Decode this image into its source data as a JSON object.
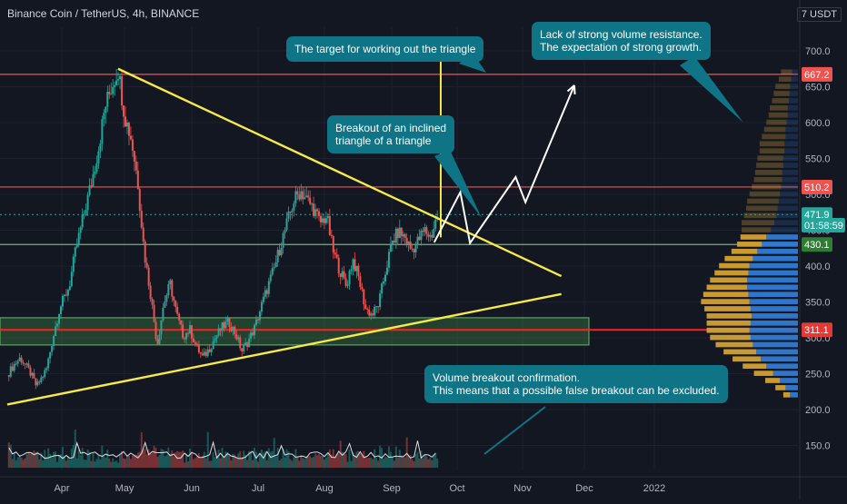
{
  "header": {
    "symbol": "Binance Coin / TetherUS, 4h, BINANCE",
    "currency": "7 USDT"
  },
  "annotations": {
    "target": "The target for working out the triangle",
    "volume_resistance": "Lack of strong volume resistance.\nThe expectation of strong growth.",
    "breakout": "Breakout of an inclined\ntriangle of a triangle",
    "volume_confirm": "Volume breakout confirmation.\nThis means that a possible false breakout can be excluded."
  },
  "colors": {
    "background": "#131722",
    "bull": "#26a69a",
    "bear": "#ef5350",
    "trendline": "#f5e94c",
    "resistance": "#ef5350",
    "support": "#4caf50",
    "annotation_bg": "#0e7486",
    "profile_up": "#2f7bd6",
    "profile_down": "#d4a032"
  },
  "chart_data": {
    "type": "candlestick",
    "title": "Binance Coin / TetherUS, 4h, BINANCE",
    "y_axis": {
      "ticks": [
        "700.0",
        "650.0",
        "600.0",
        "550.0",
        "500.0",
        "450.0",
        "400.0",
        "350.0",
        "300.0",
        "250.0",
        "200.0",
        "150.0"
      ],
      "tick_values": [
        700,
        650,
        600,
        550,
        500,
        450,
        400,
        350,
        300,
        250,
        200,
        150
      ],
      "range": [
        123,
        722
      ]
    },
    "x_axis": {
      "ticks": [
        "Apr",
        "May",
        "Jun",
        "Jul",
        "Aug",
        "Sep",
        "Oct",
        "Nov",
        "Dec",
        "2022"
      ]
    },
    "price_closes": [
      [
        0,
        248
      ],
      [
        2,
        262
      ],
      [
        4,
        272
      ],
      [
        7,
        252
      ],
      [
        9,
        232
      ],
      [
        12,
        256
      ],
      [
        14,
        300
      ],
      [
        16,
        340
      ],
      [
        19,
        372
      ],
      [
        21,
        422
      ],
      [
        23,
        462
      ],
      [
        26,
        520
      ],
      [
        28,
        565
      ],
      [
        30,
        622
      ],
      [
        32,
        650
      ],
      [
        34,
        675
      ],
      [
        36,
        610
      ],
      [
        38,
        578
      ],
      [
        40,
        520
      ],
      [
        42,
        420
      ],
      [
        44,
        360
      ],
      [
        46,
        290
      ],
      [
        48,
        348
      ],
      [
        50,
        375
      ],
      [
        52,
        332
      ],
      [
        54,
        302
      ],
      [
        56,
        312
      ],
      [
        58,
        288
      ],
      [
        60,
        272
      ],
      [
        62,
        285
      ],
      [
        64,
        302
      ],
      [
        66,
        315
      ],
      [
        68,
        322
      ],
      [
        70,
        306
      ],
      [
        72,
        282
      ],
      [
        74,
        296
      ],
      [
        76,
        315
      ],
      [
        78,
        345
      ],
      [
        80,
        372
      ],
      [
        82,
        398
      ],
      [
        84,
        432
      ],
      [
        86,
        462
      ],
      [
        88,
        492
      ],
      [
        90,
        505
      ],
      [
        92,
        492
      ],
      [
        94,
        480
      ],
      [
        96,
        460
      ],
      [
        98,
        470
      ],
      [
        100,
        420
      ],
      [
        102,
        395
      ],
      [
        104,
        372
      ],
      [
        106,
        410
      ],
      [
        108,
        380
      ],
      [
        110,
        340
      ],
      [
        112,
        332
      ],
      [
        114,
        348
      ],
      [
        116,
        392
      ],
      [
        118,
        432
      ],
      [
        120,
        448
      ],
      [
        122,
        440
      ],
      [
        124,
        422
      ],
      [
        126,
        435
      ],
      [
        128,
        450
      ],
      [
        130,
        440
      ],
      [
        132,
        472
      ]
    ],
    "levels": {
      "resistance": [
        667.2,
        510.2
      ],
      "support": [
        430.1
      ],
      "key": [
        311.1
      ],
      "support_zone": [
        290,
        328
      ]
    },
    "trendlines": [
      {
        "name": "descending",
        "from": [
          34,
          675
        ],
        "to": [
          170,
          386
        ]
      },
      {
        "name": "ascending",
        "from": [
          0,
          207
        ],
        "to": [
          170,
          361
        ]
      }
    ],
    "projection": [
      [
        131,
        433
      ],
      [
        139,
        503
      ],
      [
        142,
        432
      ],
      [
        156,
        524
      ],
      [
        159,
        489
      ],
      [
        174,
        652
      ]
    ],
    "target_line": {
      "x": 133,
      "from": 440,
      "to": 700
    },
    "price_labels": [
      {
        "text": "667.2",
        "value": 667.2,
        "color": "#ef5350"
      },
      {
        "text": "510.2",
        "value": 510.2,
        "color": "#ef5350"
      },
      {
        "text": "471.9",
        "value": 471.9,
        "color": "#26a69a"
      },
      {
        "text": "01:58:59",
        "value": 457,
        "color": "#26a69a"
      },
      {
        "text": "430.1",
        "value": 430.1,
        "color": "#2e7d32"
      },
      {
        "text": "311.1",
        "value": 311.1,
        "color": "#e53935"
      }
    ],
    "volume_profile": [
      {
        "price": 670,
        "up": 10,
        "down": 20
      },
      {
        "price": 660,
        "up": 12,
        "down": 22
      },
      {
        "price": 650,
        "up": 14,
        "down": 26
      },
      {
        "price": 640,
        "up": 15,
        "down": 28
      },
      {
        "price": 630,
        "up": 16,
        "down": 30
      },
      {
        "price": 620,
        "up": 18,
        "down": 32
      },
      {
        "price": 610,
        "up": 18,
        "down": 34
      },
      {
        "price": 600,
        "up": 20,
        "down": 36
      },
      {
        "price": 590,
        "up": 22,
        "down": 38
      },
      {
        "price": 580,
        "up": 22,
        "down": 42
      },
      {
        "price": 570,
        "up": 24,
        "down": 44
      },
      {
        "price": 560,
        "up": 24,
        "down": 44
      },
      {
        "price": 550,
        "up": 26,
        "down": 46
      },
      {
        "price": 540,
        "up": 26,
        "down": 48
      },
      {
        "price": 530,
        "up": 28,
        "down": 48
      },
      {
        "price": 520,
        "up": 28,
        "down": 50
      },
      {
        "price": 510,
        "up": 30,
        "down": 52
      },
      {
        "price": 500,
        "up": 32,
        "down": 54
      },
      {
        "price": 490,
        "up": 34,
        "down": 56
      },
      {
        "price": 480,
        "up": 36,
        "down": 56
      },
      {
        "price": 470,
        "up": 38,
        "down": 58
      },
      {
        "price": 460,
        "up": 42,
        "down": 58
      },
      {
        "price": 450,
        "up": 48,
        "down": 52
      },
      {
        "price": 440,
        "up": 56,
        "down": 46
      },
      {
        "price": 430,
        "up": 64,
        "down": 44
      },
      {
        "price": 420,
        "up": 72,
        "down": 46
      },
      {
        "price": 410,
        "up": 80,
        "down": 50
      },
      {
        "price": 400,
        "up": 86,
        "down": 54
      },
      {
        "price": 390,
        "up": 88,
        "down": 60
      },
      {
        "price": 380,
        "up": 90,
        "down": 66
      },
      {
        "price": 370,
        "up": 90,
        "down": 72
      },
      {
        "price": 360,
        "up": 88,
        "down": 80
      },
      {
        "price": 350,
        "up": 86,
        "down": 86
      },
      {
        "price": 340,
        "up": 84,
        "down": 82
      },
      {
        "price": 330,
        "up": 82,
        "down": 80
      },
      {
        "price": 320,
        "up": 84,
        "down": 78
      },
      {
        "price": 310,
        "up": 86,
        "down": 76
      },
      {
        "price": 300,
        "up": 84,
        "down": 72
      },
      {
        "price": 290,
        "up": 80,
        "down": 66
      },
      {
        "price": 280,
        "up": 74,
        "down": 58
      },
      {
        "price": 270,
        "up": 66,
        "down": 50
      },
      {
        "price": 260,
        "up": 56,
        "down": 42
      },
      {
        "price": 250,
        "up": 44,
        "down": 34
      },
      {
        "price": 240,
        "up": 32,
        "down": 26
      },
      {
        "price": 230,
        "up": 22,
        "down": 18
      },
      {
        "price": 220,
        "up": 14,
        "down": 12
      }
    ]
  }
}
